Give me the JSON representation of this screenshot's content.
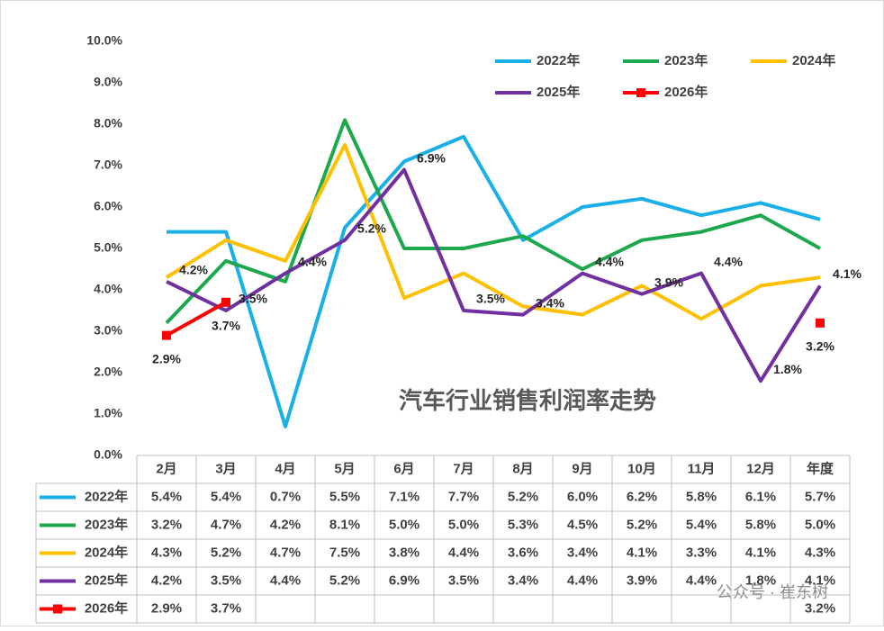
{
  "chart_data": {
    "type": "line",
    "title": "汽车行业销售利润率走势",
    "watermark": "公众号 · 崔东树",
    "categories": [
      "2月",
      "3月",
      "4月",
      "5月",
      "6月",
      "7月",
      "8月",
      "9月",
      "10月",
      "11月",
      "12月",
      "年度"
    ],
    "ylim": [
      0,
      10
    ],
    "yticks": [
      {
        "value": 0,
        "label": "0.0%"
      },
      {
        "value": 1,
        "label": "1.0%"
      },
      {
        "value": 2,
        "label": "2.0%"
      },
      {
        "value": 3,
        "label": "3.0%"
      },
      {
        "value": 4,
        "label": "4.0%"
      },
      {
        "value": 5,
        "label": "5.0%"
      },
      {
        "value": 6,
        "label": "6.0%"
      },
      {
        "value": 7,
        "label": "7.0%"
      },
      {
        "value": 8,
        "label": "8.0%"
      },
      {
        "value": 9,
        "label": "9.0%"
      },
      {
        "value": 10,
        "label": "10.0%"
      }
    ],
    "grid": false,
    "legend": "top-right",
    "series": [
      {
        "name": "2022年",
        "color": "#1aafe6",
        "values": [
          5.4,
          5.4,
          0.7,
          5.5,
          7.1,
          7.7,
          5.2,
          6.0,
          6.2,
          5.8,
          6.1,
          5.7
        ],
        "value_labels": [
          "5.4%",
          "5.4%",
          "0.7%",
          "5.5%",
          "7.1%",
          "7.7%",
          "5.2%",
          "6.0%",
          "6.2%",
          "5.8%",
          "6.1%",
          "5.7%"
        ]
      },
      {
        "name": "2023年",
        "color": "#1ea84e",
        "values": [
          3.2,
          4.7,
          4.2,
          8.1,
          5.0,
          5.0,
          5.3,
          4.5,
          5.2,
          5.4,
          5.8,
          5.0
        ],
        "value_labels": [
          "3.2%",
          "4.7%",
          "4.2%",
          "8.1%",
          "5.0%",
          "5.0%",
          "5.3%",
          "4.5%",
          "5.2%",
          "5.4%",
          "5.8%",
          "5.0%"
        ]
      },
      {
        "name": "2024年",
        "color": "#ffc000",
        "values": [
          4.3,
          5.2,
          4.7,
          7.5,
          3.8,
          4.4,
          3.6,
          3.4,
          4.1,
          3.3,
          4.1,
          4.3
        ],
        "value_labels": [
          "4.3%",
          "5.2%",
          "4.7%",
          "7.5%",
          "3.8%",
          "4.4%",
          "3.6%",
          "3.4%",
          "4.1%",
          "3.3%",
          "4.1%",
          "4.3%"
        ]
      },
      {
        "name": "2025年",
        "color": "#7030a0",
        "values": [
          4.2,
          3.5,
          4.4,
          5.2,
          6.9,
          3.5,
          3.4,
          4.4,
          3.9,
          4.4,
          1.8,
          4.1
        ],
        "value_labels": [
          "4.2%",
          "3.5%",
          "4.4%",
          "5.2%",
          "6.9%",
          "3.5%",
          "3.4%",
          "4.4%",
          "3.9%",
          "4.4%",
          "1.8%",
          "4.1%"
        ]
      },
      {
        "name": "2026年",
        "color": "#ff0000",
        "values": [
          2.9,
          3.7,
          null,
          null,
          null,
          null,
          null,
          null,
          null,
          null,
          null,
          3.2
        ],
        "value_labels": [
          "2.9%",
          "3.7%",
          null,
          null,
          null,
          null,
          null,
          null,
          null,
          null,
          null,
          "3.2%"
        ]
      }
    ]
  }
}
